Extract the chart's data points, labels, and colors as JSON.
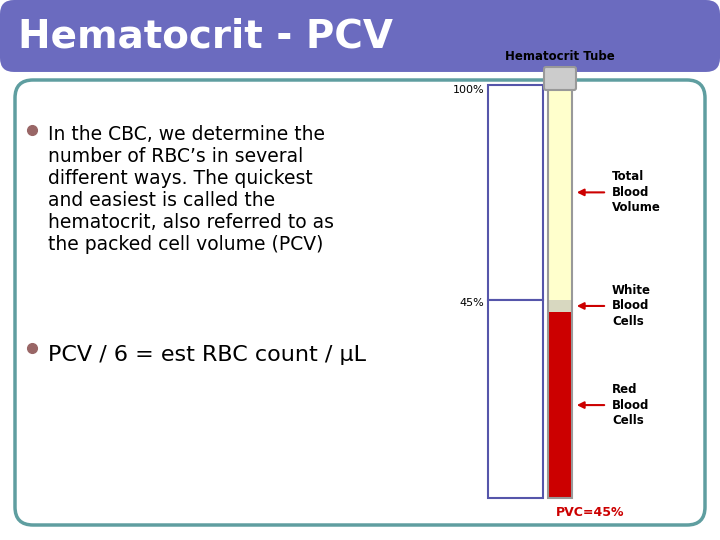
{
  "title": "Hematocrit - PCV",
  "title_bg_color": "#6B6BBF",
  "title_text_color": "#ffffff",
  "slide_bg_color": "#ffffff",
  "content_box_border_color": "#5F9EA0",
  "bullet_color": "#996666",
  "bullet1_line1": "In the CBC, we determine the",
  "bullet1_line2": "number of RBC’s in several",
  "bullet1_line3": "different ways. The quickest",
  "bullet1_line4": "and easiest is called the",
  "bullet1_line5": "hematocrit, also referred to as",
  "bullet1_line6": "the packed cell volume (PCV)",
  "bullet2": "PCV / 6 = est RBC count / μL",
  "tube_label": "Hematocrit Tube",
  "label_total": "Total\nBlood\nVolume",
  "label_wbc": "White\nBlood\nCells",
  "label_rbc": "Red\nBlood\nCells",
  "label_pcv": "PVC=45%",
  "label_100": "100%",
  "label_45": "45%",
  "color_plasma": "#FFFFCC",
  "color_wbc": "#D8D8C0",
  "color_rbc": "#CC0000",
  "color_tube_outline": "#999999",
  "color_arrow": "#CC0000",
  "color_pcv_text": "#CC0000",
  "color_label_text": "#000000",
  "color_bracket": "#5555AA"
}
